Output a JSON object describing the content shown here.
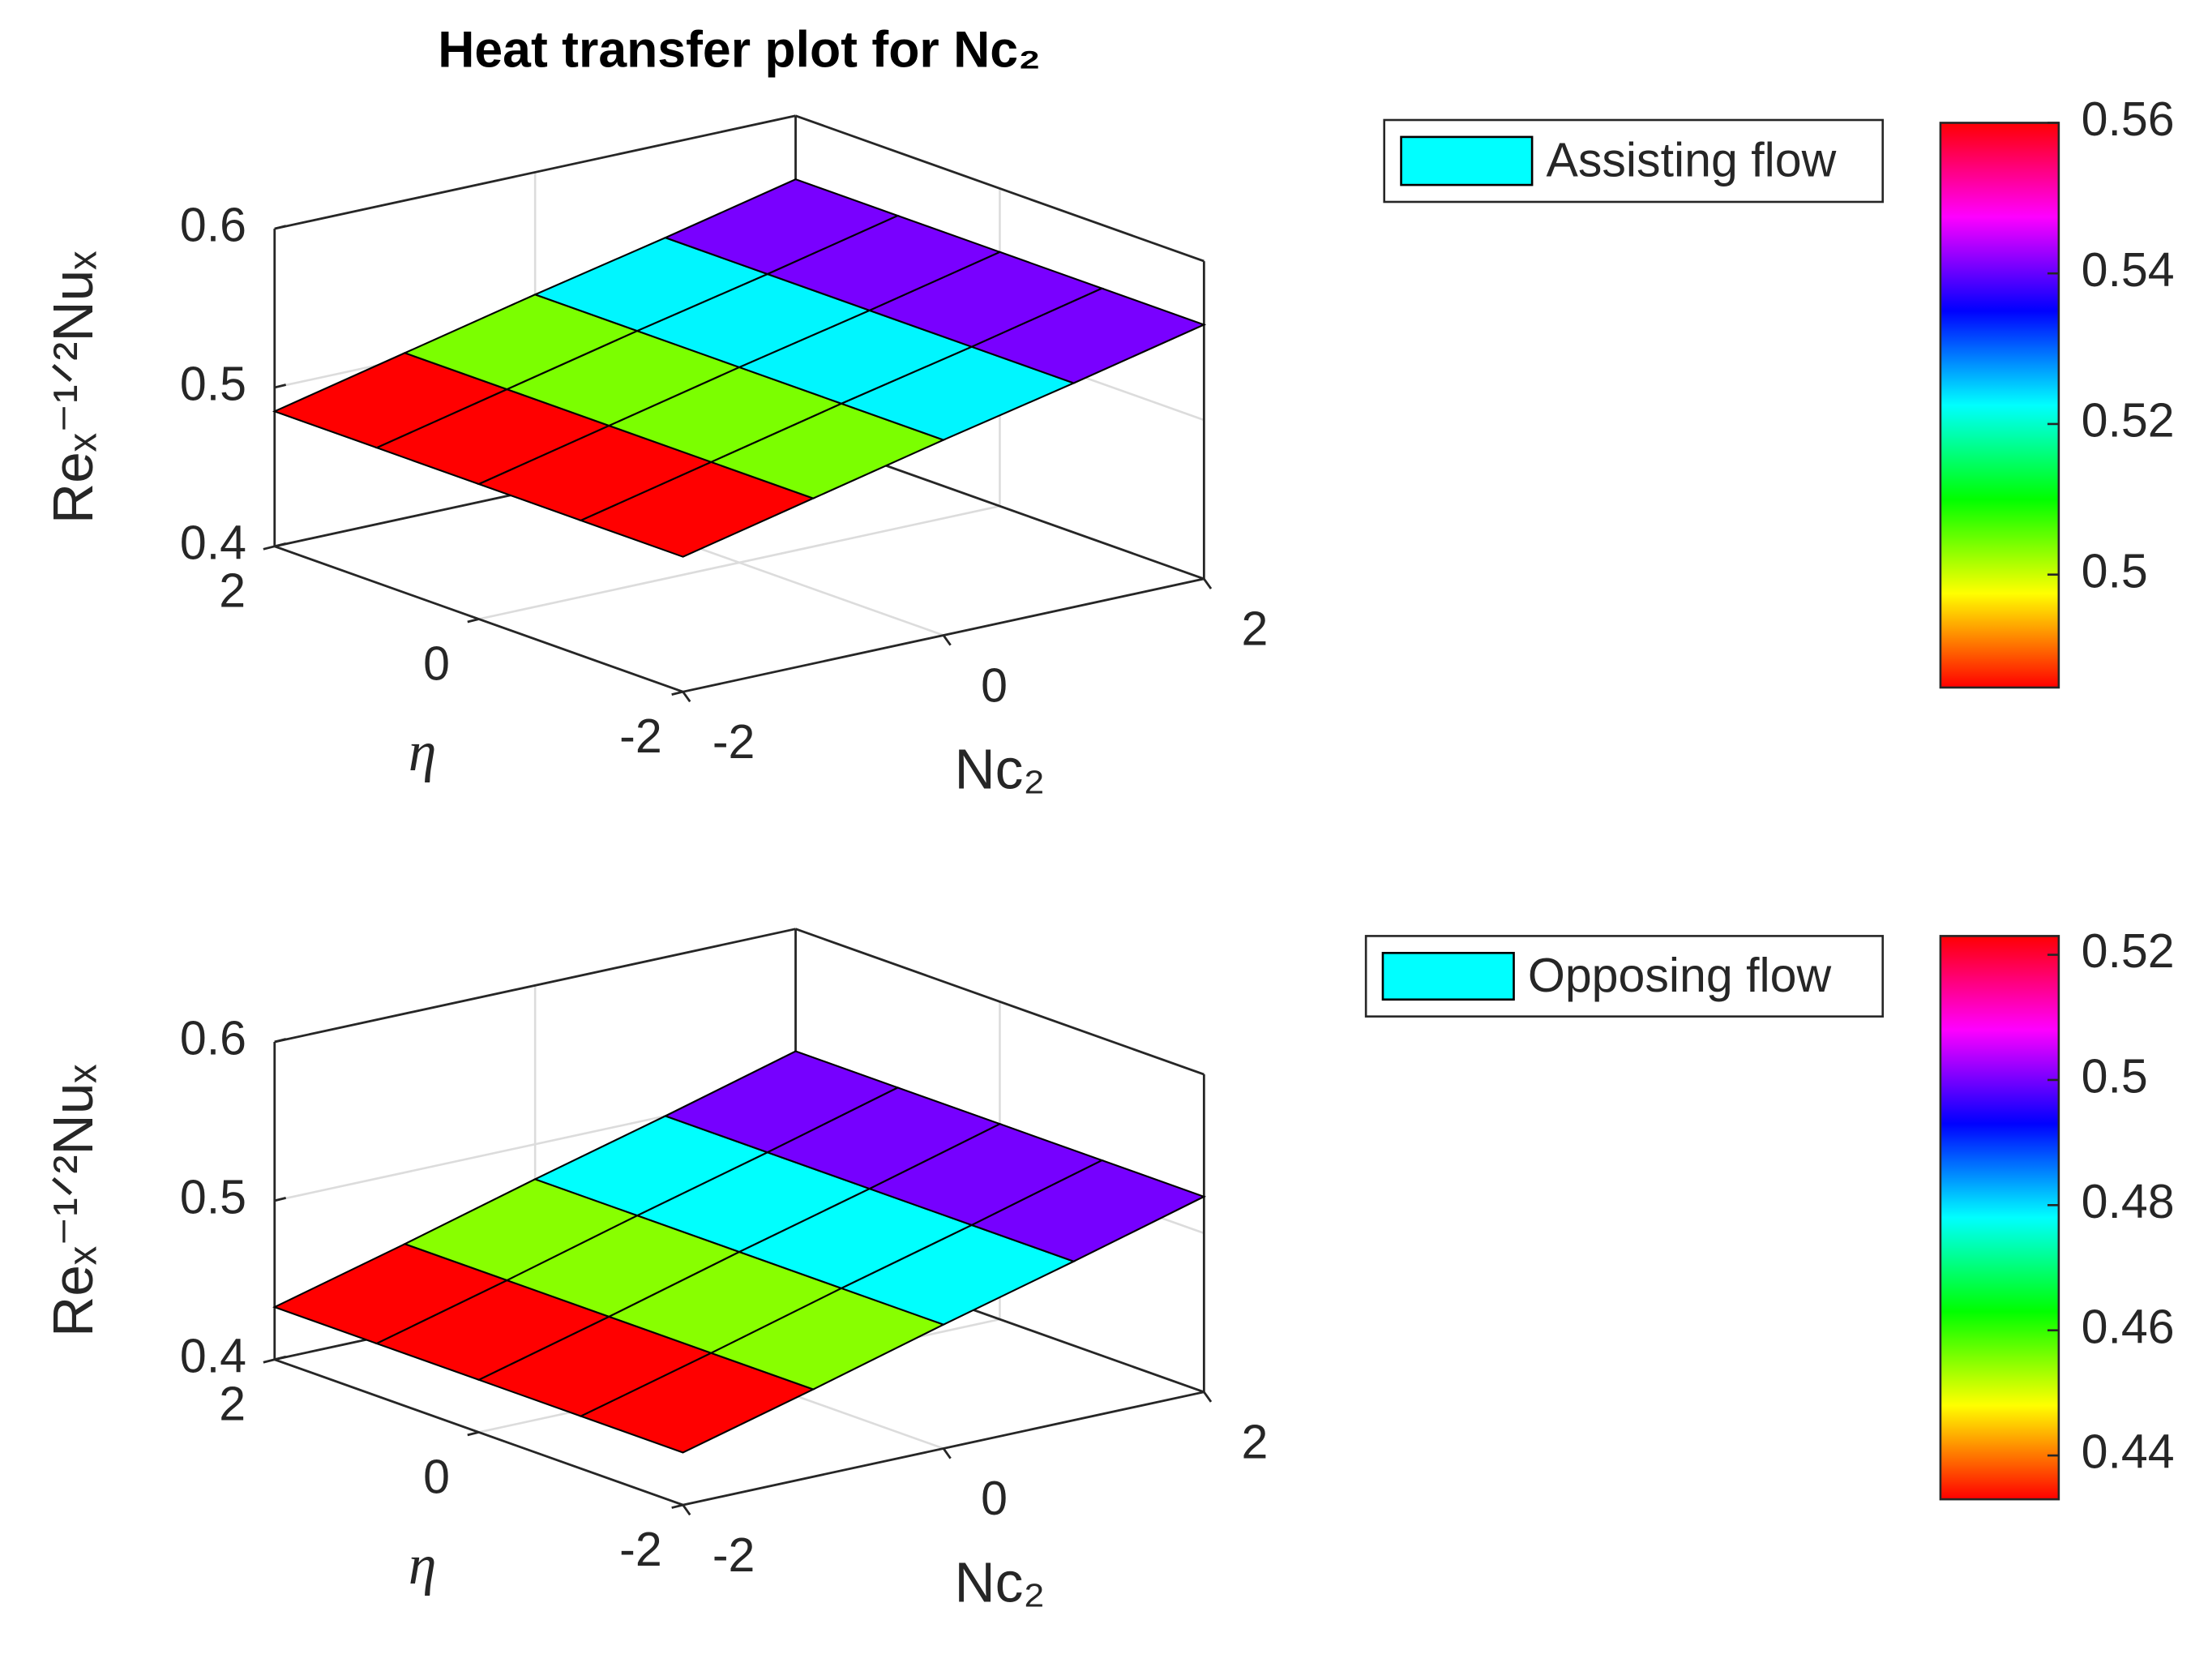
{
  "chart_data": [
    {
      "type": "surface",
      "title": "Heat transfer plot for Nc₂",
      "xlabel": "Nc₂",
      "ylabel": "η",
      "zlabel": "Reₓ⁻¹ᐟ²Nuₓ",
      "x": [
        -2,
        -1,
        0,
        1,
        2
      ],
      "y": [
        -2,
        -1,
        0,
        1,
        2
      ],
      "xlim": [
        -2,
        2
      ],
      "ylim": [
        -2,
        2
      ],
      "zlim": [
        0.4,
        0.6
      ],
      "xticks": [
        -2,
        0,
        2
      ],
      "yticks": [
        -2,
        0,
        2
      ],
      "zticks": [
        0.4,
        0.5,
        0.6
      ],
      "colorbar_ticks": [
        0.5,
        0.52,
        0.54,
        0.56
      ],
      "colormap": "hsv",
      "grid": true,
      "series": [
        {
          "name": "Assisting flow",
          "color": "#00ffff",
          "z": [
            [
              0.485,
              0.504,
              0.523,
              0.541,
              0.56
            ],
            [
              0.485,
              0.504,
              0.523,
              0.541,
              0.56
            ],
            [
              0.485,
              0.504,
              0.523,
              0.541,
              0.56
            ],
            [
              0.485,
              0.504,
              0.523,
              0.541,
              0.56
            ],
            [
              0.485,
              0.504,
              0.523,
              0.541,
              0.56
            ]
          ]
        }
      ]
    },
    {
      "type": "surface",
      "xlabel": "Nc₂",
      "ylabel": "η",
      "zlabel": "Reₓ⁻¹ᐟ²Nuₓ",
      "x": [
        -2,
        -1,
        0,
        1,
        2
      ],
      "y": [
        -2,
        -1,
        0,
        1,
        2
      ],
      "xlim": [
        -2,
        2
      ],
      "ylim": [
        -2,
        2
      ],
      "zlim": [
        0.4,
        0.6
      ],
      "xticks": [
        -2,
        0,
        2
      ],
      "yticks": [
        -2,
        0,
        2
      ],
      "zticks": [
        0.4,
        0.5,
        0.6
      ],
      "colorbar_ticks": [
        0.44,
        0.46,
        0.48,
        0.5,
        0.52
      ],
      "colormap": "hsv",
      "grid": true,
      "series": [
        {
          "name": "Opposing flow",
          "color": "#00ffff",
          "z": [
            [
              0.433,
              0.455,
              0.478,
              0.5,
              0.523
            ],
            [
              0.433,
              0.455,
              0.478,
              0.5,
              0.523
            ],
            [
              0.433,
              0.455,
              0.478,
              0.5,
              0.523
            ],
            [
              0.433,
              0.455,
              0.478,
              0.5,
              0.523
            ],
            [
              0.433,
              0.455,
              0.478,
              0.5,
              0.523
            ]
          ]
        }
      ]
    }
  ]
}
